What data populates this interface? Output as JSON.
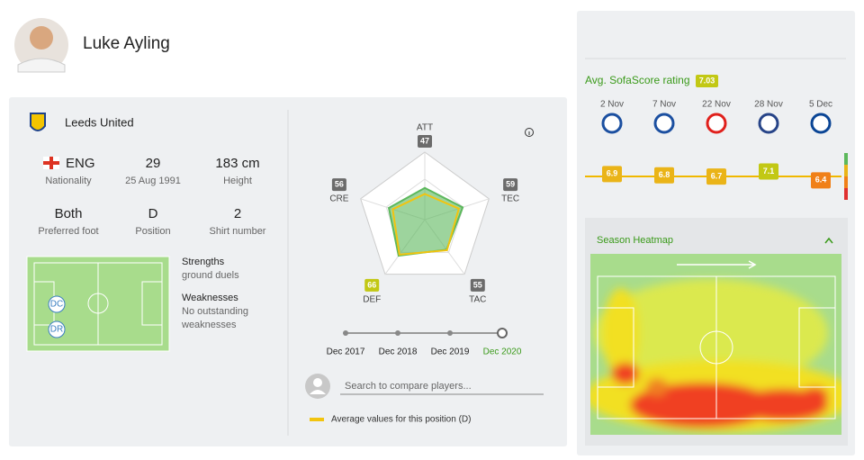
{
  "header": {
    "player_name": "Luke Ayling"
  },
  "profile": {
    "team": "Leeds United",
    "details": [
      {
        "value": "ENG",
        "label": "Nationality"
      },
      {
        "value": "29",
        "label": "25 Aug 1991"
      },
      {
        "value": "183 cm",
        "label": "Height"
      },
      {
        "value": "Both",
        "label": "Preferred foot"
      },
      {
        "value": "D",
        "label": "Position"
      },
      {
        "value": "2",
        "label": "Shirt number"
      }
    ],
    "positions": [
      "DC",
      "DR"
    ],
    "strengths": {
      "title": "Strengths",
      "items": [
        "ground duels"
      ]
    },
    "weaknesses": {
      "title": "Weaknesses",
      "lines": [
        "No outstanding",
        "weaknesses"
      ]
    }
  },
  "chart_data": {
    "type": "radar",
    "categories": [
      "ATT",
      "TEC",
      "TAC",
      "DEF",
      "CRE"
    ],
    "rlim": [
      0,
      100
    ],
    "series": [
      {
        "color": "#5cb85c",
        "values": [
          47,
          59,
          55,
          66,
          56
        ],
        "value_colors": [
          "#6b6b6b",
          "#6b6b6b",
          "#6b6b6b",
          "#c2c814",
          "#6b6b6b"
        ]
      },
      {
        "name": "Average values for this position (D)",
        "color": "#f2c40f",
        "values": [
          38,
          53,
          56,
          64,
          50
        ]
      }
    ]
  },
  "season_selector": {
    "seasons": [
      "Dec 2017",
      "Dec 2018",
      "Dec 2019",
      "Dec 2020"
    ],
    "selected": 3
  },
  "compare": {
    "placeholder": "Search to compare players..."
  },
  "ratings": {
    "title": "Avg. SofaScore rating",
    "average": 7.03,
    "matches": [
      {
        "date": "2 Nov",
        "rating": 6.9,
        "color": "#eab418"
      },
      {
        "date": "7 Nov",
        "rating": 6.8,
        "color": "#eab418"
      },
      {
        "date": "22 Nov",
        "rating": 6.7,
        "color": "#eab418"
      },
      {
        "date": "28 Nov",
        "rating": 7.1,
        "color": "#c2c814"
      },
      {
        "date": "5 Dec",
        "rating": 6.4,
        "color": "#f08018"
      }
    ]
  },
  "heatmap": {
    "title": "Season Heatmap"
  }
}
